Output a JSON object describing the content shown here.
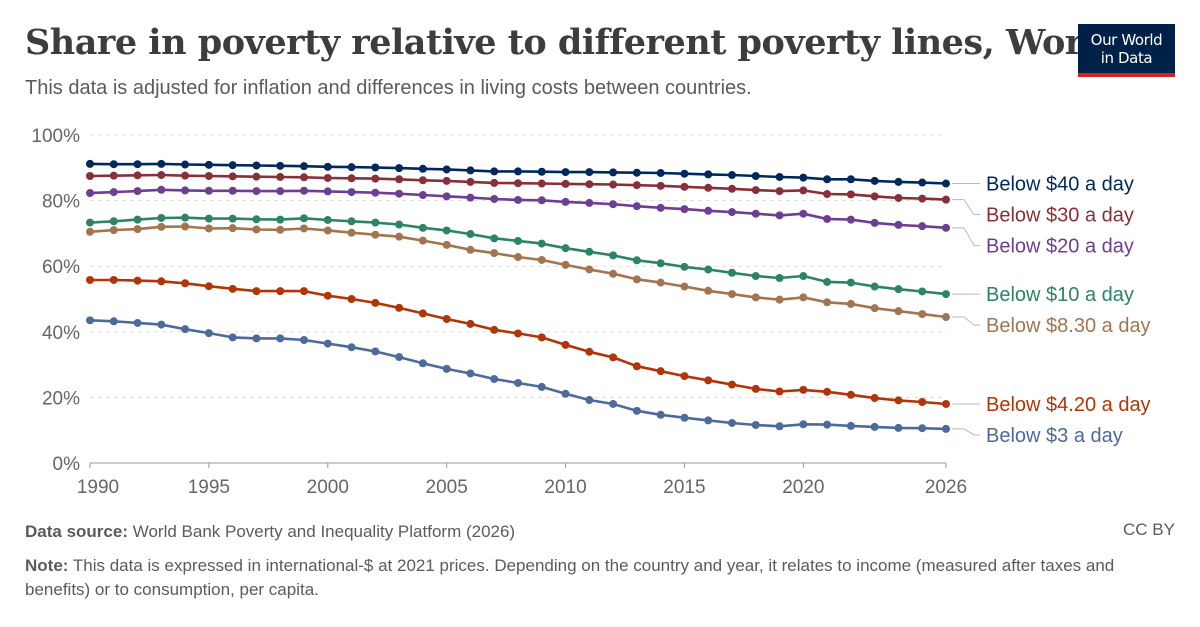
{
  "header": {
    "title": "Share in poverty relative to different poverty lines, World",
    "subtitle": "This data is adjusted for inflation and differences in living costs between countries."
  },
  "logo": {
    "line1": "Our World",
    "line2": "in Data"
  },
  "footer": {
    "source_label": "Data source:",
    "source_text": "World Bank Poverty and Inequality Platform (2026)",
    "note_label": "Note:",
    "note_text": "This data is expressed in international-$ at 2021 prices. Depending on the country and year, it relates to income (measured after taxes and benefits) or to consumption, per capita.",
    "license": "CC BY"
  },
  "chart_data": {
    "type": "line",
    "title": "Share in poverty relative to different poverty lines, World",
    "xlabel": "",
    "ylabel": "",
    "xlim": [
      1990,
      2026
    ],
    "ylim": [
      0,
      100
    ],
    "x_ticks": [
      1990,
      1995,
      2000,
      2005,
      2010,
      2015,
      2020,
      2026
    ],
    "x_tick_labels": [
      "1990",
      "1995",
      "2000",
      "2005",
      "2010",
      "2015",
      "2020",
      "2026"
    ],
    "y_ticks": [
      0,
      20,
      40,
      60,
      80,
      100
    ],
    "y_tick_labels": [
      "0%",
      "20%",
      "40%",
      "60%",
      "80%",
      "100%"
    ],
    "grid": "horizontal-dashed",
    "legend": "right-end-labels",
    "x": [
      1990,
      1991,
      1992,
      1993,
      1994,
      1995,
      1996,
      1997,
      1998,
      1999,
      2000,
      2001,
      2002,
      2003,
      2004,
      2005,
      2006,
      2007,
      2008,
      2009,
      2010,
      2011,
      2012,
      2013,
      2014,
      2015,
      2016,
      2017,
      2018,
      2019,
      2020,
      2021,
      2022,
      2023,
      2024,
      2025,
      2026
    ],
    "series": [
      {
        "name": "Below $40 a day",
        "color": "#00295b",
        "values": [
          91.2,
          91.1,
          91.1,
          91.2,
          91.0,
          90.9,
          90.8,
          90.7,
          90.6,
          90.5,
          90.3,
          90.2,
          90.1,
          89.9,
          89.7,
          89.5,
          89.2,
          88.9,
          88.9,
          88.8,
          88.7,
          88.7,
          88.6,
          88.5,
          88.4,
          88.2,
          88.0,
          87.8,
          87.5,
          87.2,
          87.0,
          86.5,
          86.5,
          86.0,
          85.7,
          85.5,
          85.2
        ]
      },
      {
        "name": "Below $30 a day",
        "color": "#883039",
        "values": [
          87.5,
          87.6,
          87.7,
          87.8,
          87.6,
          87.5,
          87.4,
          87.3,
          87.2,
          87.1,
          86.9,
          86.8,
          86.7,
          86.5,
          86.2,
          86.0,
          85.7,
          85.4,
          85.3,
          85.2,
          85.1,
          85.0,
          84.9,
          84.7,
          84.5,
          84.2,
          83.9,
          83.6,
          83.2,
          82.9,
          83.1,
          82.0,
          81.9,
          81.3,
          80.8,
          80.6,
          80.3
        ]
      },
      {
        "name": "Below $20 a day",
        "color": "#6d3e91",
        "values": [
          82.3,
          82.6,
          82.9,
          83.3,
          83.1,
          83.0,
          83.0,
          82.9,
          82.9,
          83.0,
          82.8,
          82.6,
          82.4,
          82.1,
          81.7,
          81.3,
          80.9,
          80.5,
          80.2,
          80.1,
          79.6,
          79.3,
          78.9,
          78.3,
          77.8,
          77.4,
          76.9,
          76.5,
          76.0,
          75.5,
          76.0,
          74.4,
          74.2,
          73.2,
          72.6,
          72.2,
          71.7
        ]
      },
      {
        "name": "Below $10 a day",
        "color": "#2c8465",
        "values": [
          73.3,
          73.7,
          74.2,
          74.7,
          74.8,
          74.5,
          74.5,
          74.3,
          74.2,
          74.6,
          74.1,
          73.7,
          73.3,
          72.7,
          71.7,
          70.9,
          69.8,
          68.5,
          67.7,
          66.9,
          65.5,
          64.4,
          63.3,
          61.8,
          60.9,
          59.8,
          59.0,
          58.0,
          57.0,
          56.4,
          57.0,
          55.2,
          55.0,
          53.8,
          53.0,
          52.3,
          51.5
        ]
      },
      {
        "name": "Below $8.30 a day",
        "color": "#a2754e",
        "values": [
          70.5,
          71.0,
          71.3,
          72.0,
          72.1,
          71.5,
          71.6,
          71.2,
          71.1,
          71.5,
          70.9,
          70.2,
          69.6,
          69.0,
          67.8,
          66.5,
          65.0,
          64.0,
          62.8,
          61.9,
          60.4,
          59.0,
          57.7,
          56.0,
          55.0,
          53.8,
          52.5,
          51.5,
          50.5,
          49.8,
          50.5,
          49.0,
          48.5,
          47.2,
          46.3,
          45.4,
          44.5
        ]
      },
      {
        "name": "Below $4.20 a day",
        "color": "#b13507",
        "values": [
          55.8,
          55.8,
          55.6,
          55.4,
          54.8,
          53.9,
          53.1,
          52.4,
          52.4,
          52.4,
          51.0,
          50.0,
          48.8,
          47.3,
          45.6,
          43.9,
          42.4,
          40.6,
          39.5,
          38.3,
          36.0,
          33.9,
          32.2,
          29.5,
          28.0,
          26.5,
          25.2,
          23.9,
          22.6,
          21.8,
          22.3,
          21.7,
          20.8,
          19.8,
          19.1,
          18.6,
          18.0
        ]
      },
      {
        "name": "Below $3 a day",
        "color": "#4c6a9c",
        "values": [
          43.5,
          43.2,
          42.7,
          42.2,
          40.8,
          39.6,
          38.3,
          38.0,
          38.0,
          37.5,
          36.4,
          35.3,
          34.0,
          32.3,
          30.4,
          28.7,
          27.3,
          25.6,
          24.4,
          23.2,
          21.1,
          19.2,
          18.0,
          15.9,
          14.7,
          13.8,
          13.0,
          12.2,
          11.6,
          11.2,
          11.8,
          11.7,
          11.3,
          11.0,
          10.7,
          10.6,
          10.4
        ]
      }
    ]
  }
}
